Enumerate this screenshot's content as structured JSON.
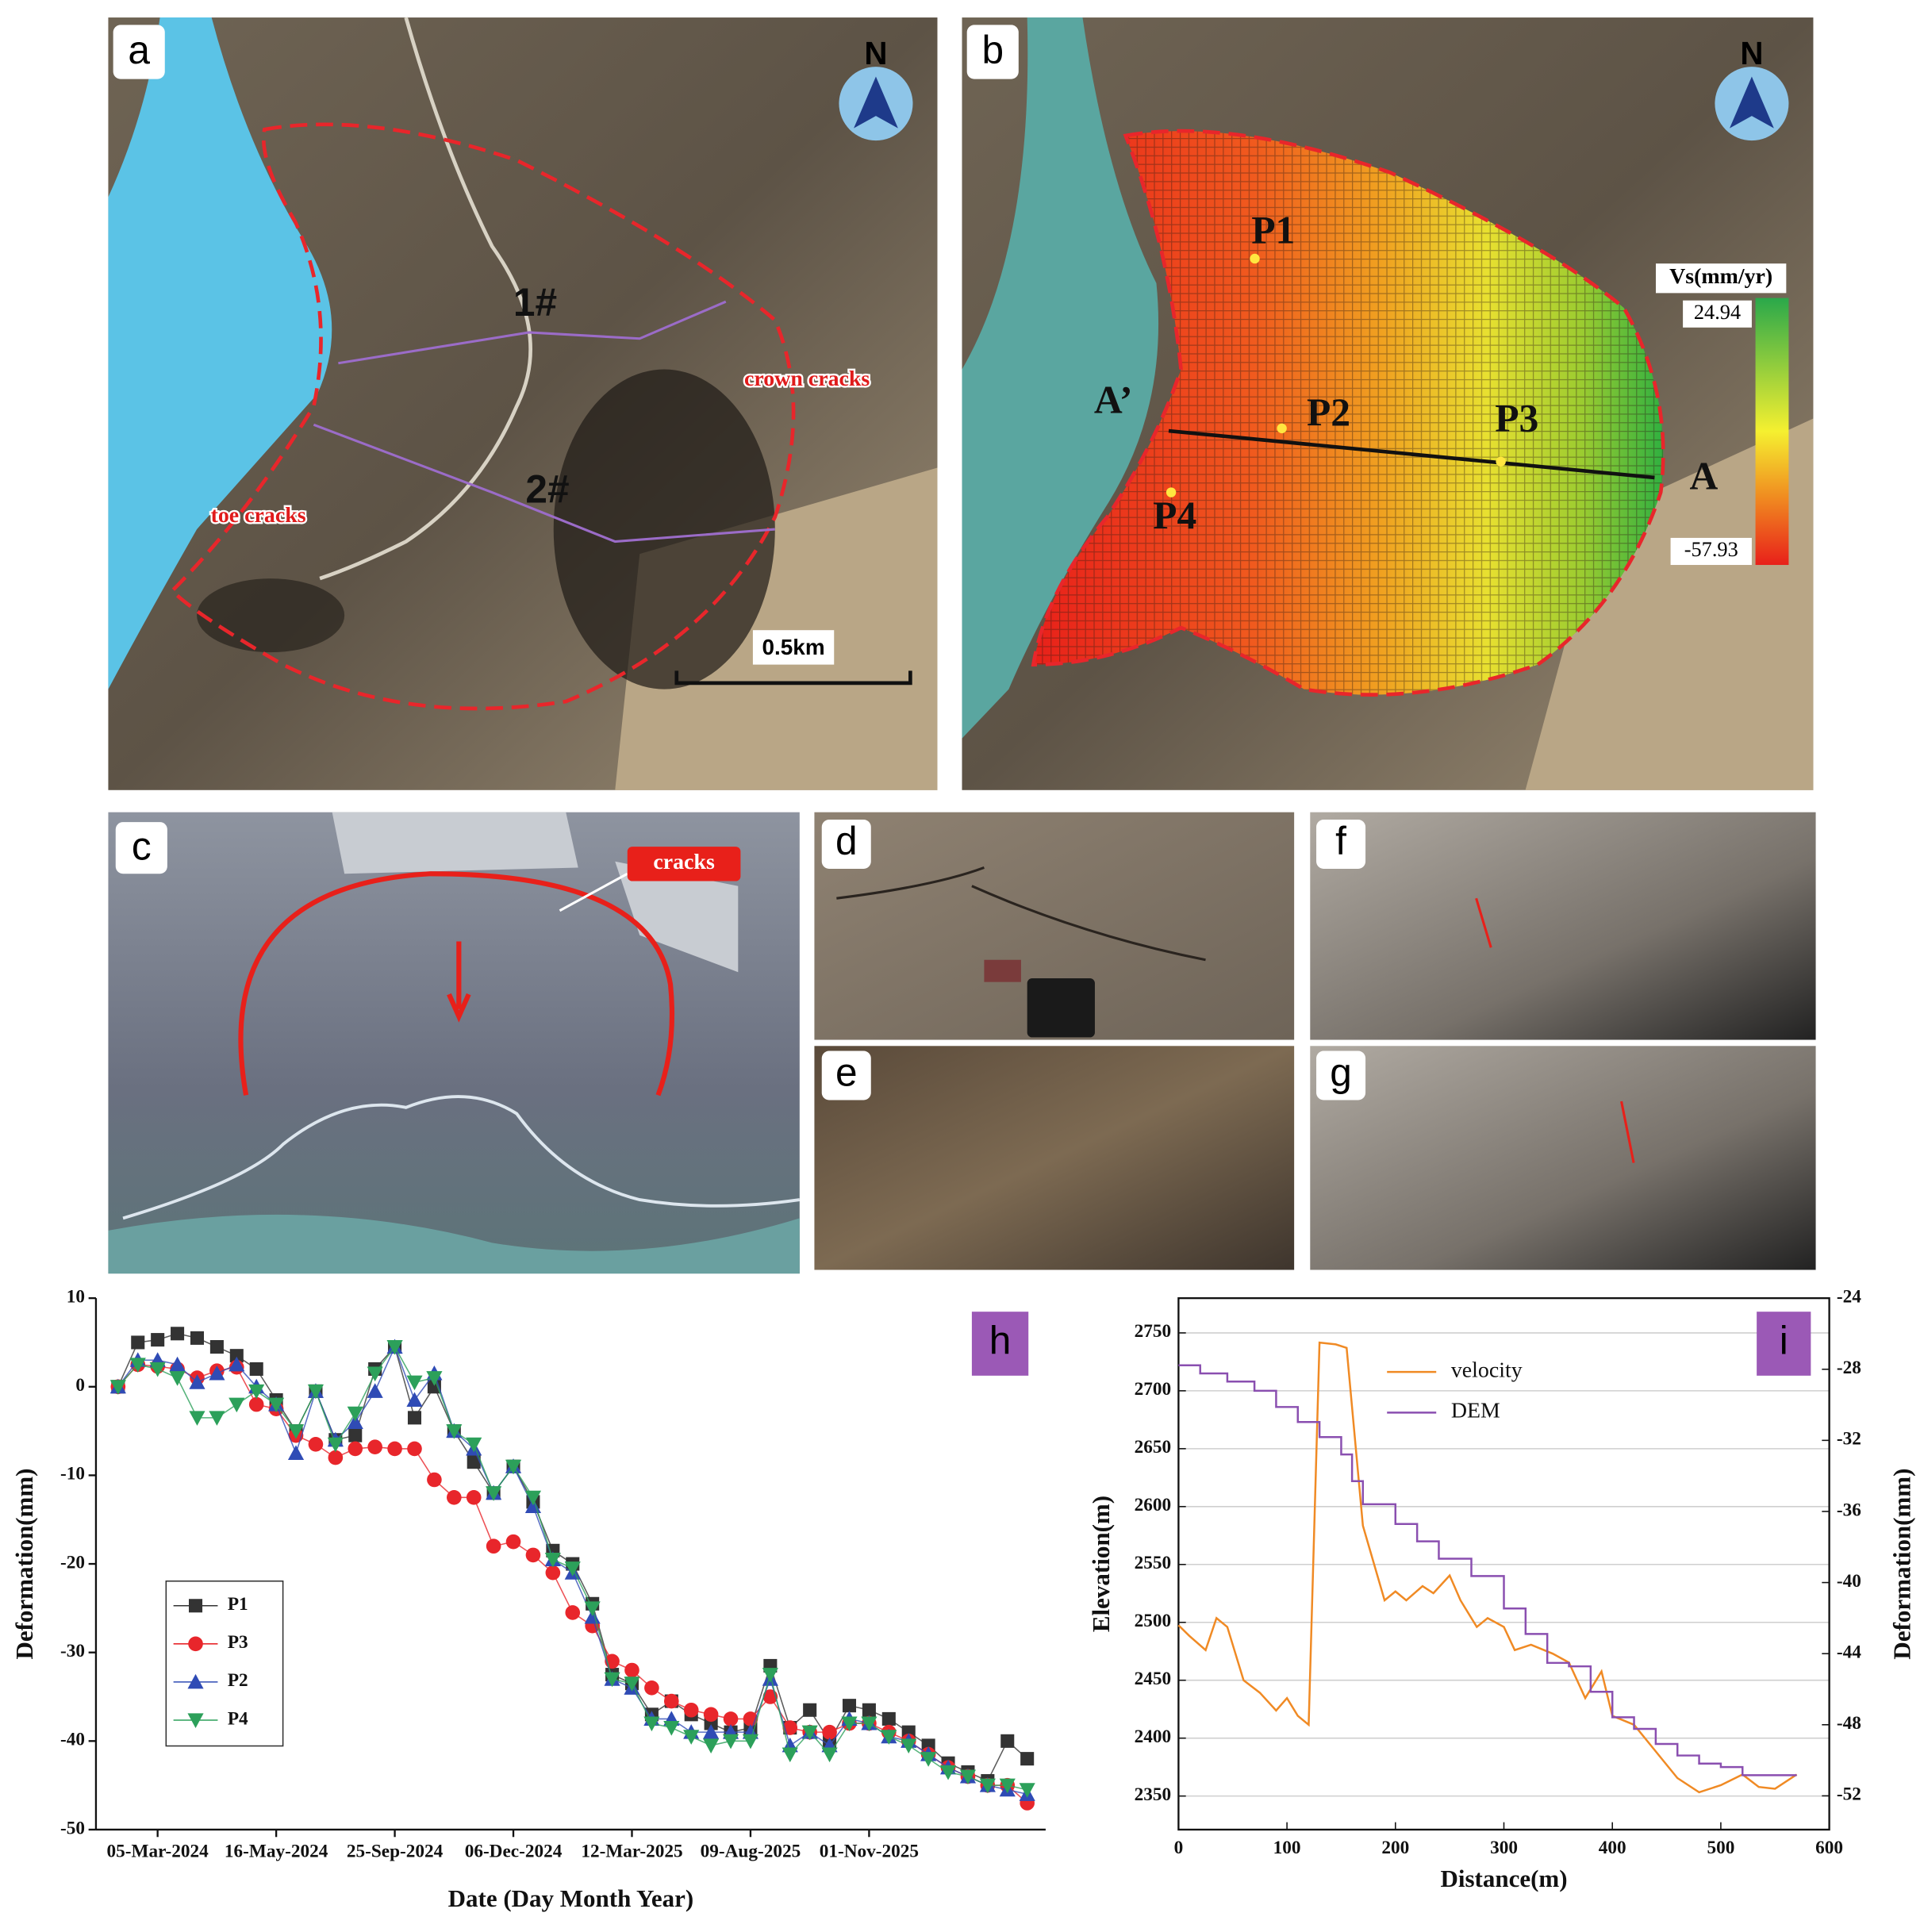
{
  "map_a": {
    "panel": "a",
    "north": "N",
    "profile_1": "1#",
    "profile_2": "2#",
    "crown": "crown cracks",
    "toe": "toe cracks",
    "scale": "0.5km"
  },
  "map_b": {
    "panel": "b",
    "north": "N",
    "points": [
      "P1",
      "P2",
      "P3",
      "P4"
    ],
    "section_start": "A’",
    "section_end": "A",
    "colorbar": {
      "title": "Vs(mm/yr)",
      "max": 24.94,
      "min": -57.93
    }
  },
  "photo_c": {
    "panel": "c",
    "annotation": "cracks"
  },
  "photos": [
    "d",
    "e",
    "f",
    "g"
  ],
  "chart_data": [
    {
      "type": "line",
      "panel": "h",
      "x_label": "Date (Day Month Year)",
      "y_label": "Deformation(mm)",
      "categories": [
        null,
        null,
        "05-Mar-2024",
        null,
        null,
        null,
        null,
        null,
        "16-May-2024",
        null,
        null,
        null,
        null,
        null,
        "25-Sep-2024",
        null,
        null,
        null,
        null,
        null,
        "06-Dec-2024",
        null,
        null,
        null,
        null,
        null,
        "12-Mar-2025",
        null,
        null,
        null,
        null,
        null,
        "09-Aug-2025",
        null,
        null,
        null,
        null,
        null,
        "01-Nov-2025",
        null,
        null,
        null,
        null,
        null,
        null,
        null,
        null
      ],
      "ylim": [
        -50,
        10
      ],
      "yticks": [
        -50,
        -40,
        -30,
        -20,
        -10,
        0,
        10
      ],
      "legend": "lower left",
      "series": [
        {
          "name": "P1",
          "color": "#333333",
          "marker": "square",
          "values": [
            0,
            5,
            5.3,
            6,
            5.5,
            4.5,
            3.5,
            2,
            -1.5,
            -5,
            -0.5,
            -6,
            -5.5,
            2,
            4.5,
            -3.5,
            0,
            -5,
            -8.5,
            -12,
            -9,
            -13,
            -18.5,
            -20,
            -24.5,
            -32.5,
            -33.5,
            -37,
            -35.5,
            -37,
            -38,
            -39,
            -38.5,
            -31.5,
            -38.5,
            -36.5,
            -40,
            -36,
            -36.5,
            -37.5,
            -39,
            -40.5,
            -42.5,
            -43.5,
            -44.5,
            -40,
            -42
          ]
        },
        {
          "name": "P3",
          "color": "#e8262b",
          "marker": "circle",
          "values": [
            0,
            2.5,
            2.3,
            2,
            1,
            1.8,
            2.2,
            -2,
            -2.5,
            -5.5,
            -6.5,
            -8,
            -7,
            -6.8,
            -7,
            -7,
            -10.5,
            -12.5,
            -12.5,
            -18,
            -17.5,
            -19,
            -21,
            -25.5,
            -27,
            -31,
            -32,
            -34,
            -35.5,
            -36.5,
            -37,
            -37.5,
            -37.5,
            -35,
            -38.5,
            -39,
            -39,
            -38,
            -38,
            -39,
            -40,
            -41.5,
            -43,
            -44,
            -45,
            -45,
            -47
          ]
        },
        {
          "name": "P2",
          "color": "#2f4bb5",
          "marker": "triangle-up",
          "values": [
            0,
            3,
            3,
            2.5,
            0.5,
            1.5,
            2.5,
            0,
            -2,
            -7.5,
            -0.5,
            -6,
            -4,
            -0.5,
            4.5,
            -1.5,
            1.5,
            -5,
            -7,
            -12,
            -9,
            -13.5,
            -19.5,
            -21,
            -26,
            -33,
            -34,
            -37.5,
            -37.5,
            -39,
            -39,
            -39,
            -39,
            -33,
            -40.5,
            -39,
            -40.5,
            -37.5,
            -38,
            -39.5,
            -40,
            -41.5,
            -43,
            -44,
            -45,
            -45.5,
            -46
          ]
        },
        {
          "name": "P4",
          "color": "#2ca05a",
          "marker": "triangle-down",
          "values": [
            0,
            2.5,
            2,
            1,
            -3.5,
            -3.5,
            -2,
            -0.5,
            -2,
            -5,
            -0.5,
            -6.5,
            -3,
            1.5,
            4.5,
            0.5,
            1,
            -5,
            -6.5,
            -12,
            -9,
            -12.5,
            -19.5,
            -20.5,
            -25,
            -33,
            -33.5,
            -38,
            -38.5,
            -39.5,
            -40.5,
            -40,
            -40,
            -32.5,
            -41.5,
            -39,
            -41.5,
            -38,
            -38,
            -39.5,
            -40.5,
            -42,
            -43.5,
            -44,
            -45,
            -45,
            -45.5
          ]
        }
      ]
    },
    {
      "type": "line",
      "panel": "i",
      "x_label": "Distance(m)",
      "y_label": "Elevation(m)",
      "y2_label": "Deformation(mm)",
      "xlim": [
        0,
        600
      ],
      "xticks": [
        0,
        100,
        200,
        300,
        400,
        500,
        600
      ],
      "ylim": [
        2321,
        2780
      ],
      "yticks": [
        2350,
        2400,
        2450,
        2500,
        2550,
        2600,
        2650,
        2700,
        2750
      ],
      "y2lim": [
        -53.9,
        -24
      ],
      "y2ticks": [
        -52,
        -48,
        -44,
        -40,
        -36,
        -32,
        -28,
        -24
      ],
      "grid": true,
      "legend": "upper center",
      "series": [
        {
          "name": "velocity",
          "color": "#f08a24",
          "axis": "y2",
          "x": [
            0,
            10,
            25,
            35,
            45,
            60,
            75,
            90,
            100,
            110,
            120,
            130,
            145,
            155,
            170,
            190,
            200,
            210,
            225,
            235,
            250,
            260,
            275,
            285,
            300,
            310,
            325,
            345,
            360,
            375,
            390,
            400,
            420,
            440,
            460,
            480,
            500,
            520,
            535,
            550,
            570
          ],
          "values": [
            -42.4,
            -43,
            -43.8,
            -42,
            -42.5,
            -45.5,
            -46.2,
            -47.2,
            -46.5,
            -47.5,
            -48,
            -26.5,
            -26.6,
            -26.8,
            -36.8,
            -41,
            -40.5,
            -41,
            -40.2,
            -40.6,
            -39.6,
            -41,
            -42.5,
            -42,
            -42.5,
            -43.8,
            -43.5,
            -44,
            -44.5,
            -46.5,
            -45,
            -47.5,
            -48,
            -49.5,
            -51,
            -51.8,
            -51.4,
            -50.8,
            -51.5,
            -51.6,
            -50.8
          ]
        },
        {
          "name": "DEM",
          "color": "#8a4fb0",
          "x": [
            0,
            20,
            20,
            45,
            45,
            70,
            70,
            90,
            90,
            110,
            110,
            130,
            130,
            150,
            150,
            160,
            160,
            170,
            170,
            200,
            200,
            220,
            220,
            240,
            240,
            270,
            270,
            300,
            300,
            320,
            320,
            340,
            340,
            360,
            360,
            380,
            380,
            400,
            400,
            420,
            420,
            440,
            440,
            460,
            460,
            480,
            480,
            500,
            500,
            520,
            520,
            570
          ],
          "values": [
            2722,
            2722,
            2715,
            2715,
            2708,
            2708,
            2700,
            2700,
            2686,
            2686,
            2673,
            2673,
            2660,
            2660,
            2645,
            2645,
            2622,
            2622,
            2602,
            2602,
            2585,
            2585,
            2570,
            2570,
            2555,
            2555,
            2540,
            2540,
            2512,
            2512,
            2490,
            2490,
            2465,
            2465,
            2462,
            2462,
            2440,
            2440,
            2418,
            2418,
            2408,
            2408,
            2395,
            2395,
            2385,
            2385,
            2378,
            2378,
            2375,
            2375,
            2368,
            2368
          ]
        }
      ]
    }
  ]
}
